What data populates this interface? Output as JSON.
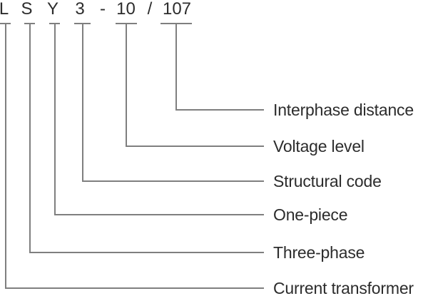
{
  "model_code": {
    "parts": [
      "L",
      "S",
      "Y",
      "3",
      "-",
      "10",
      "/",
      "107"
    ]
  },
  "legend": {
    "items": [
      {
        "code": "107",
        "label": "Interphase distance"
      },
      {
        "code": "10",
        "label": "Voltage level"
      },
      {
        "code": "3",
        "label": "Structural code"
      },
      {
        "code": "Y",
        "label": "One-piece"
      },
      {
        "code": "S",
        "label": "Three-phase"
      },
      {
        "code": "L",
        "label": "Current transformer"
      }
    ]
  },
  "colors": {
    "line": "#7f7f7f",
    "text": "#2c2c2c",
    "background": "#ffffff"
  }
}
